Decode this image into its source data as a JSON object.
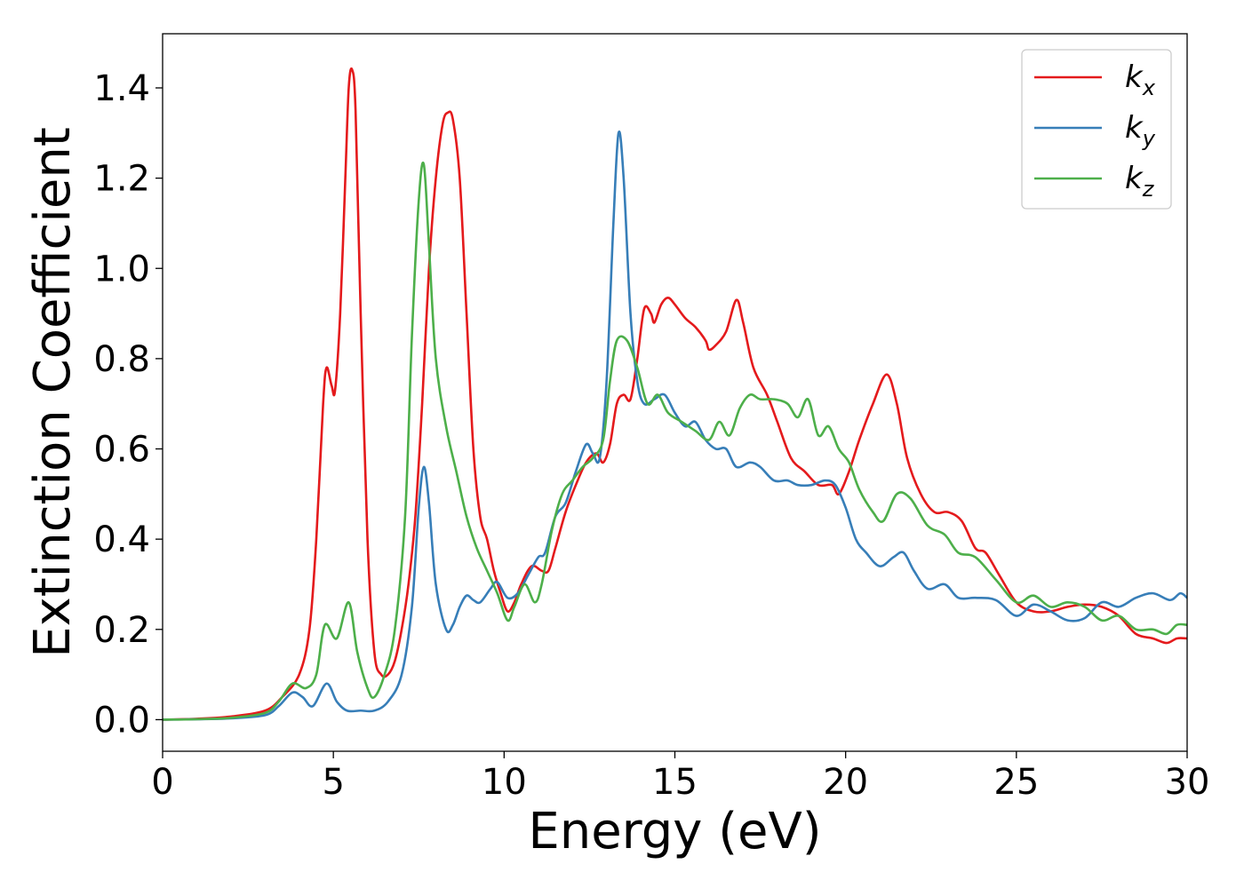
{
  "chart_data": {
    "type": "line",
    "title": "",
    "xlabel": "Energy (eV)",
    "ylabel": "Extinction Coefficient",
    "xlim": [
      0,
      30
    ],
    "ylim": [
      -0.07,
      1.52
    ],
    "xticks": [
      0,
      5,
      10,
      15,
      20,
      25,
      30
    ],
    "xtick_labels": [
      "0",
      "5",
      "10",
      "15",
      "20",
      "25",
      "30"
    ],
    "yticks": [
      0.0,
      0.2,
      0.4,
      0.6,
      0.8,
      1.0,
      1.2,
      1.4
    ],
    "ytick_labels": [
      "0.0",
      "0.2",
      "0.4",
      "0.6",
      "0.8",
      "1.0",
      "1.2",
      "1.4"
    ],
    "grid": false,
    "legend_position": "top-right",
    "series": [
      {
        "name": "k_x",
        "legend_base": "k",
        "legend_sub": "x",
        "color": "#e41a1c",
        "points": [
          [
            0,
            0
          ],
          [
            1,
            0.002
          ],
          [
            2,
            0.007
          ],
          [
            3,
            0.02
          ],
          [
            3.5,
            0.05
          ],
          [
            4,
            0.1
          ],
          [
            4.3,
            0.2
          ],
          [
            4.5,
            0.4
          ],
          [
            4.7,
            0.7
          ],
          [
            4.8,
            0.78
          ],
          [
            4.95,
            0.74
          ],
          [
            5.05,
            0.73
          ],
          [
            5.2,
            0.9
          ],
          [
            5.35,
            1.2
          ],
          [
            5.45,
            1.4
          ],
          [
            5.55,
            1.44
          ],
          [
            5.65,
            1.35
          ],
          [
            5.8,
            0.9
          ],
          [
            6,
            0.4
          ],
          [
            6.2,
            0.15
          ],
          [
            6.4,
            0.1
          ],
          [
            6.6,
            0.1
          ],
          [
            6.8,
            0.13
          ],
          [
            7,
            0.2
          ],
          [
            7.2,
            0.3
          ],
          [
            7.4,
            0.45
          ],
          [
            7.6,
            0.7
          ],
          [
            7.8,
            1.0
          ],
          [
            8,
            1.2
          ],
          [
            8.2,
            1.32
          ],
          [
            8.35,
            1.345
          ],
          [
            8.5,
            1.33
          ],
          [
            8.7,
            1.2
          ],
          [
            8.9,
            0.9
          ],
          [
            9.1,
            0.6
          ],
          [
            9.3,
            0.45
          ],
          [
            9.5,
            0.4
          ],
          [
            9.7,
            0.33
          ],
          [
            9.9,
            0.28
          ],
          [
            10.1,
            0.24
          ],
          [
            10.3,
            0.26
          ],
          [
            10.5,
            0.3
          ],
          [
            10.8,
            0.34
          ],
          [
            11.1,
            0.33
          ],
          [
            11.3,
            0.33
          ],
          [
            11.5,
            0.38
          ],
          [
            11.8,
            0.46
          ],
          [
            12.1,
            0.52
          ],
          [
            12.4,
            0.57
          ],
          [
            12.7,
            0.59
          ],
          [
            12.9,
            0.57
          ],
          [
            13.1,
            0.61
          ],
          [
            13.3,
            0.7
          ],
          [
            13.5,
            0.72
          ],
          [
            13.7,
            0.71
          ],
          [
            13.9,
            0.8
          ],
          [
            14.1,
            0.91
          ],
          [
            14.3,
            0.9
          ],
          [
            14.4,
            0.88
          ],
          [
            14.6,
            0.92
          ],
          [
            14.8,
            0.935
          ],
          [
            15,
            0.92
          ],
          [
            15.3,
            0.89
          ],
          [
            15.6,
            0.87
          ],
          [
            15.9,
            0.84
          ],
          [
            16,
            0.82
          ],
          [
            16.2,
            0.83
          ],
          [
            16.5,
            0.86
          ],
          [
            16.8,
            0.93
          ],
          [
            17,
            0.88
          ],
          [
            17.3,
            0.78
          ],
          [
            17.7,
            0.72
          ],
          [
            18,
            0.66
          ],
          [
            18.4,
            0.58
          ],
          [
            18.8,
            0.55
          ],
          [
            19.2,
            0.52
          ],
          [
            19.6,
            0.52
          ],
          [
            19.8,
            0.5
          ],
          [
            20.1,
            0.55
          ],
          [
            20.4,
            0.62
          ],
          [
            20.8,
            0.7
          ],
          [
            21.2,
            0.765
          ],
          [
            21.5,
            0.7
          ],
          [
            21.8,
            0.58
          ],
          [
            22.2,
            0.5
          ],
          [
            22.6,
            0.46
          ],
          [
            23,
            0.46
          ],
          [
            23.4,
            0.44
          ],
          [
            23.8,
            0.38
          ],
          [
            24.1,
            0.37
          ],
          [
            24.5,
            0.32
          ],
          [
            25,
            0.26
          ],
          [
            25.5,
            0.24
          ],
          [
            26,
            0.24
          ],
          [
            26.5,
            0.25
          ],
          [
            27,
            0.255
          ],
          [
            27.5,
            0.25
          ],
          [
            28,
            0.23
          ],
          [
            28.5,
            0.19
          ],
          [
            29,
            0.18
          ],
          [
            29.4,
            0.17
          ],
          [
            29.7,
            0.18
          ],
          [
            30,
            0.18
          ]
        ]
      },
      {
        "name": "k_y",
        "legend_base": "k",
        "legend_sub": "y",
        "color": "#377eb8",
        "points": [
          [
            0,
            0
          ],
          [
            1,
            0.001
          ],
          [
            2,
            0.003
          ],
          [
            3,
            0.01
          ],
          [
            3.4,
            0.03
          ],
          [
            3.8,
            0.06
          ],
          [
            4.1,
            0.05
          ],
          [
            4.4,
            0.03
          ],
          [
            4.8,
            0.08
          ],
          [
            5.1,
            0.04
          ],
          [
            5.4,
            0.02
          ],
          [
            5.8,
            0.02
          ],
          [
            6.2,
            0.02
          ],
          [
            6.6,
            0.04
          ],
          [
            7,
            0.1
          ],
          [
            7.3,
            0.25
          ],
          [
            7.5,
            0.47
          ],
          [
            7.65,
            0.56
          ],
          [
            7.8,
            0.48
          ],
          [
            8,
            0.3
          ],
          [
            8.3,
            0.2
          ],
          [
            8.5,
            0.21
          ],
          [
            8.7,
            0.25
          ],
          [
            8.9,
            0.275
          ],
          [
            9.1,
            0.265
          ],
          [
            9.3,
            0.26
          ],
          [
            9.6,
            0.29
          ],
          [
            9.8,
            0.305
          ],
          [
            10.1,
            0.27
          ],
          [
            10.4,
            0.28
          ],
          [
            10.7,
            0.32
          ],
          [
            11,
            0.36
          ],
          [
            11.2,
            0.37
          ],
          [
            11.5,
            0.45
          ],
          [
            11.8,
            0.48
          ],
          [
            12.1,
            0.55
          ],
          [
            12.4,
            0.61
          ],
          [
            12.6,
            0.59
          ],
          [
            12.8,
            0.58
          ],
          [
            13,
            0.75
          ],
          [
            13.2,
            1.1
          ],
          [
            13.35,
            1.3
          ],
          [
            13.5,
            1.2
          ],
          [
            13.7,
            0.9
          ],
          [
            13.9,
            0.75
          ],
          [
            14.1,
            0.7
          ],
          [
            14.4,
            0.71
          ],
          [
            14.7,
            0.72
          ],
          [
            15,
            0.68
          ],
          [
            15.3,
            0.65
          ],
          [
            15.6,
            0.66
          ],
          [
            15.9,
            0.62
          ],
          [
            16.2,
            0.6
          ],
          [
            16.5,
            0.6
          ],
          [
            16.8,
            0.56
          ],
          [
            17.2,
            0.57
          ],
          [
            17.5,
            0.56
          ],
          [
            17.9,
            0.53
          ],
          [
            18.3,
            0.53
          ],
          [
            18.6,
            0.52
          ],
          [
            19,
            0.52
          ],
          [
            19.4,
            0.53
          ],
          [
            19.7,
            0.52
          ],
          [
            20,
            0.47
          ],
          [
            20.3,
            0.4
          ],
          [
            20.6,
            0.37
          ],
          [
            21,
            0.34
          ],
          [
            21.4,
            0.36
          ],
          [
            21.7,
            0.37
          ],
          [
            22,
            0.33
          ],
          [
            22.4,
            0.29
          ],
          [
            22.9,
            0.3
          ],
          [
            23.3,
            0.27
          ],
          [
            23.8,
            0.27
          ],
          [
            24.4,
            0.265
          ],
          [
            25,
            0.23
          ],
          [
            25.5,
            0.255
          ],
          [
            26,
            0.24
          ],
          [
            26.5,
            0.22
          ],
          [
            27,
            0.225
          ],
          [
            27.5,
            0.26
          ],
          [
            28,
            0.25
          ],
          [
            28.5,
            0.27
          ],
          [
            29,
            0.28
          ],
          [
            29.5,
            0.265
          ],
          [
            29.8,
            0.28
          ],
          [
            30,
            0.27
          ]
        ]
      },
      {
        "name": "k_z",
        "legend_base": "k",
        "legend_sub": "z",
        "color": "#4daf4a",
        "points": [
          [
            0,
            0
          ],
          [
            1,
            0.001
          ],
          [
            2,
            0.004
          ],
          [
            3,
            0.015
          ],
          [
            3.4,
            0.04
          ],
          [
            3.8,
            0.08
          ],
          [
            4.2,
            0.07
          ],
          [
            4.5,
            0.1
          ],
          [
            4.75,
            0.21
          ],
          [
            5.1,
            0.18
          ],
          [
            5.45,
            0.26
          ],
          [
            5.7,
            0.15
          ],
          [
            6,
            0.07
          ],
          [
            6.2,
            0.05
          ],
          [
            6.5,
            0.1
          ],
          [
            6.8,
            0.2
          ],
          [
            7.1,
            0.45
          ],
          [
            7.3,
            0.85
          ],
          [
            7.5,
            1.15
          ],
          [
            7.65,
            1.23
          ],
          [
            7.8,
            1.05
          ],
          [
            8,
            0.8
          ],
          [
            8.3,
            0.65
          ],
          [
            8.6,
            0.55
          ],
          [
            8.9,
            0.45
          ],
          [
            9.2,
            0.38
          ],
          [
            9.5,
            0.33
          ],
          [
            9.8,
            0.28
          ],
          [
            10.1,
            0.22
          ],
          [
            10.3,
            0.25
          ],
          [
            10.6,
            0.3
          ],
          [
            10.9,
            0.26
          ],
          [
            11.1,
            0.3
          ],
          [
            11.4,
            0.42
          ],
          [
            11.7,
            0.5
          ],
          [
            12,
            0.53
          ],
          [
            12.3,
            0.56
          ],
          [
            12.6,
            0.58
          ],
          [
            12.9,
            0.62
          ],
          [
            13.1,
            0.75
          ],
          [
            13.3,
            0.84
          ],
          [
            13.6,
            0.84
          ],
          [
            13.9,
            0.78
          ],
          [
            14.2,
            0.7
          ],
          [
            14.5,
            0.72
          ],
          [
            14.8,
            0.68
          ],
          [
            15.2,
            0.66
          ],
          [
            15.6,
            0.64
          ],
          [
            16,
            0.62
          ],
          [
            16.3,
            0.66
          ],
          [
            16.6,
            0.63
          ],
          [
            16.9,
            0.69
          ],
          [
            17.2,
            0.72
          ],
          [
            17.5,
            0.71
          ],
          [
            17.9,
            0.71
          ],
          [
            18.3,
            0.7
          ],
          [
            18.6,
            0.67
          ],
          [
            18.9,
            0.71
          ],
          [
            19.2,
            0.63
          ],
          [
            19.5,
            0.65
          ],
          [
            19.8,
            0.6
          ],
          [
            20.1,
            0.57
          ],
          [
            20.4,
            0.51
          ],
          [
            20.8,
            0.46
          ],
          [
            21.1,
            0.44
          ],
          [
            21.5,
            0.5
          ],
          [
            21.9,
            0.49
          ],
          [
            22.4,
            0.43
          ],
          [
            22.9,
            0.41
          ],
          [
            23.3,
            0.37
          ],
          [
            23.8,
            0.36
          ],
          [
            24.4,
            0.31
          ],
          [
            25,
            0.26
          ],
          [
            25.5,
            0.275
          ],
          [
            26,
            0.25
          ],
          [
            26.5,
            0.26
          ],
          [
            27,
            0.25
          ],
          [
            27.5,
            0.22
          ],
          [
            28,
            0.23
          ],
          [
            28.5,
            0.2
          ],
          [
            29,
            0.2
          ],
          [
            29.4,
            0.19
          ],
          [
            29.7,
            0.21
          ],
          [
            30,
            0.21
          ]
        ]
      }
    ]
  }
}
